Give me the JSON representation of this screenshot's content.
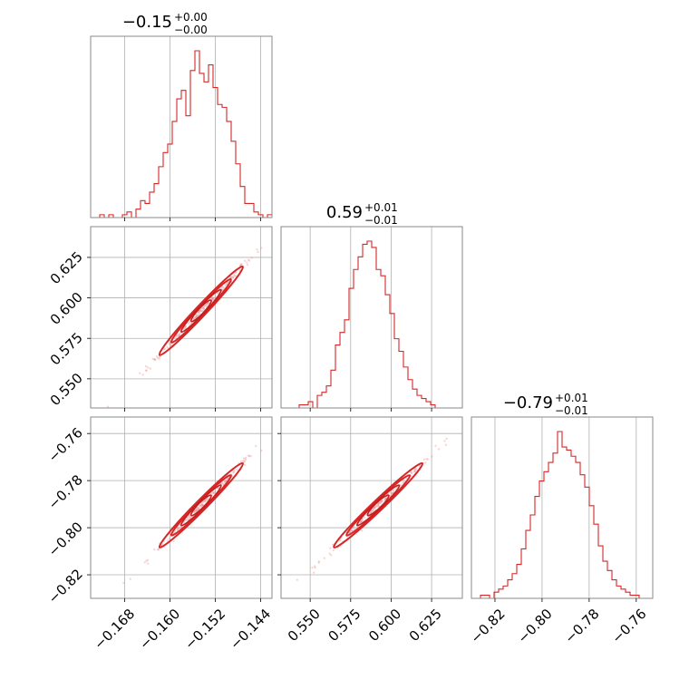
{
  "chart_data": {
    "type": "corner",
    "color": "#d62728",
    "grid": true,
    "parameters": [
      {
        "title_median": "−0.15",
        "title_plus": "+0.00",
        "title_minus": "−0.00",
        "range": [
          -0.174,
          -0.142
        ],
        "ticks": [
          -0.168,
          -0.16,
          -0.152,
          -0.144
        ],
        "tick_labels": [
          "−0.168",
          "−0.160",
          "−0.152",
          "−0.144"
        ],
        "mean": -0.1545,
        "sd": 0.0035
      },
      {
        "title_median": "0.59",
        "title_plus": "+0.01",
        "title_minus": "−0.01",
        "range": [
          0.532,
          0.644
        ],
        "ticks": [
          0.55,
          0.575,
          0.6,
          0.625
        ],
        "tick_labels": [
          "0.550",
          "0.575",
          "0.600",
          "0.625"
        ],
        "mean": 0.592,
        "sd": 0.013
      },
      {
        "title_median": "−0.79",
        "title_plus": "+0.01",
        "title_minus": "−0.01",
        "range": [
          -0.83,
          -0.753
        ],
        "ticks": [
          -0.82,
          -0.8,
          -0.78,
          -0.76
        ],
        "tick_labels": [
          "−0.82",
          "−0.80",
          "−0.78",
          "−0.76"
        ],
        "mean": -0.7905,
        "sd": 0.0085
      }
    ],
    "histograms": [
      [
        0,
        0,
        1,
        0,
        1,
        0,
        0,
        1,
        2,
        0,
        3,
        6,
        5,
        9,
        12,
        18,
        23,
        26,
        34,
        42,
        45,
        36,
        52,
        59,
        51,
        48,
        54,
        46,
        40,
        39,
        34,
        27,
        19,
        11,
        5,
        5,
        2,
        1,
        0,
        1
      ],
      [
        0,
        0,
        0,
        0,
        1,
        1,
        2,
        0,
        4,
        5,
        7,
        12,
        20,
        24,
        28,
        38,
        44,
        48,
        52,
        53,
        51,
        44,
        42,
        36,
        30,
        22,
        18,
        13,
        9,
        6,
        4,
        3,
        2,
        1,
        0,
        0,
        0,
        0,
        0,
        0
      ],
      [
        0,
        0,
        1,
        1,
        0,
        2,
        3,
        4,
        6,
        8,
        11,
        16,
        22,
        27,
        33,
        38,
        41,
        44,
        47,
        54,
        49,
        48,
        46,
        44,
        40,
        36,
        30,
        24,
        17,
        12,
        9,
        6,
        4,
        3,
        2,
        1,
        1,
        0,
        0,
        0
      ]
    ],
    "correlations": {
      "p0_p1": 0.99,
      "p0_p2": 0.99,
      "p1_p2": 0.99
    }
  }
}
